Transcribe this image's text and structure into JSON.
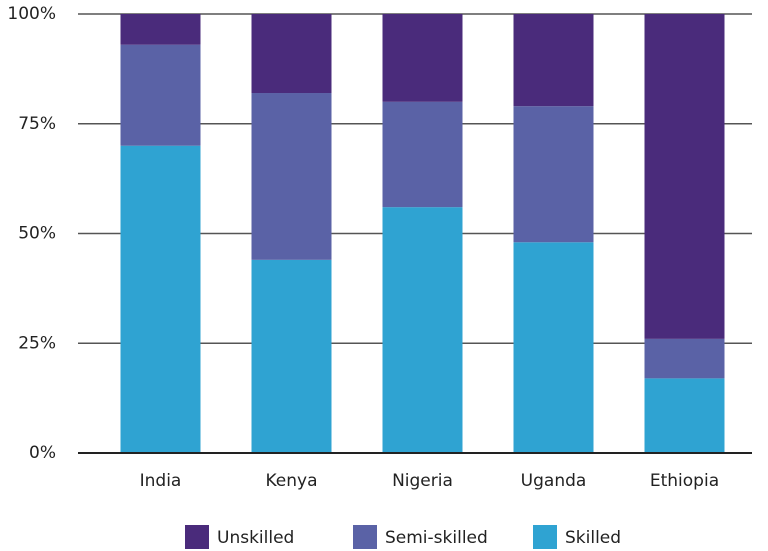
{
  "chart_data": {
    "type": "stacked_bar",
    "categories": [
      "India",
      "Kenya",
      "Nigeria",
      "Uganda",
      "Ethiopia"
    ],
    "series": [
      {
        "name": "Skilled",
        "color": "#2fa3d2",
        "values": [
          70,
          44,
          56,
          48,
          17
        ]
      },
      {
        "name": "Semi-skilled",
        "color": "#5a62a6",
        "values": [
          23,
          38,
          24,
          31,
          9
        ]
      },
      {
        "name": "Unskilled",
        "color": "#4a2b7b",
        "values": [
          7,
          18,
          20,
          21,
          74
        ]
      }
    ],
    "ylim": [
      0,
      100
    ],
    "yticks": [
      {
        "value": 0,
        "label": "0%"
      },
      {
        "value": 25,
        "label": "25%"
      },
      {
        "value": 50,
        "label": "50%"
      },
      {
        "value": 75,
        "label": "75%"
      },
      {
        "value": 100,
        "label": "100%"
      }
    ],
    "grid": true
  }
}
